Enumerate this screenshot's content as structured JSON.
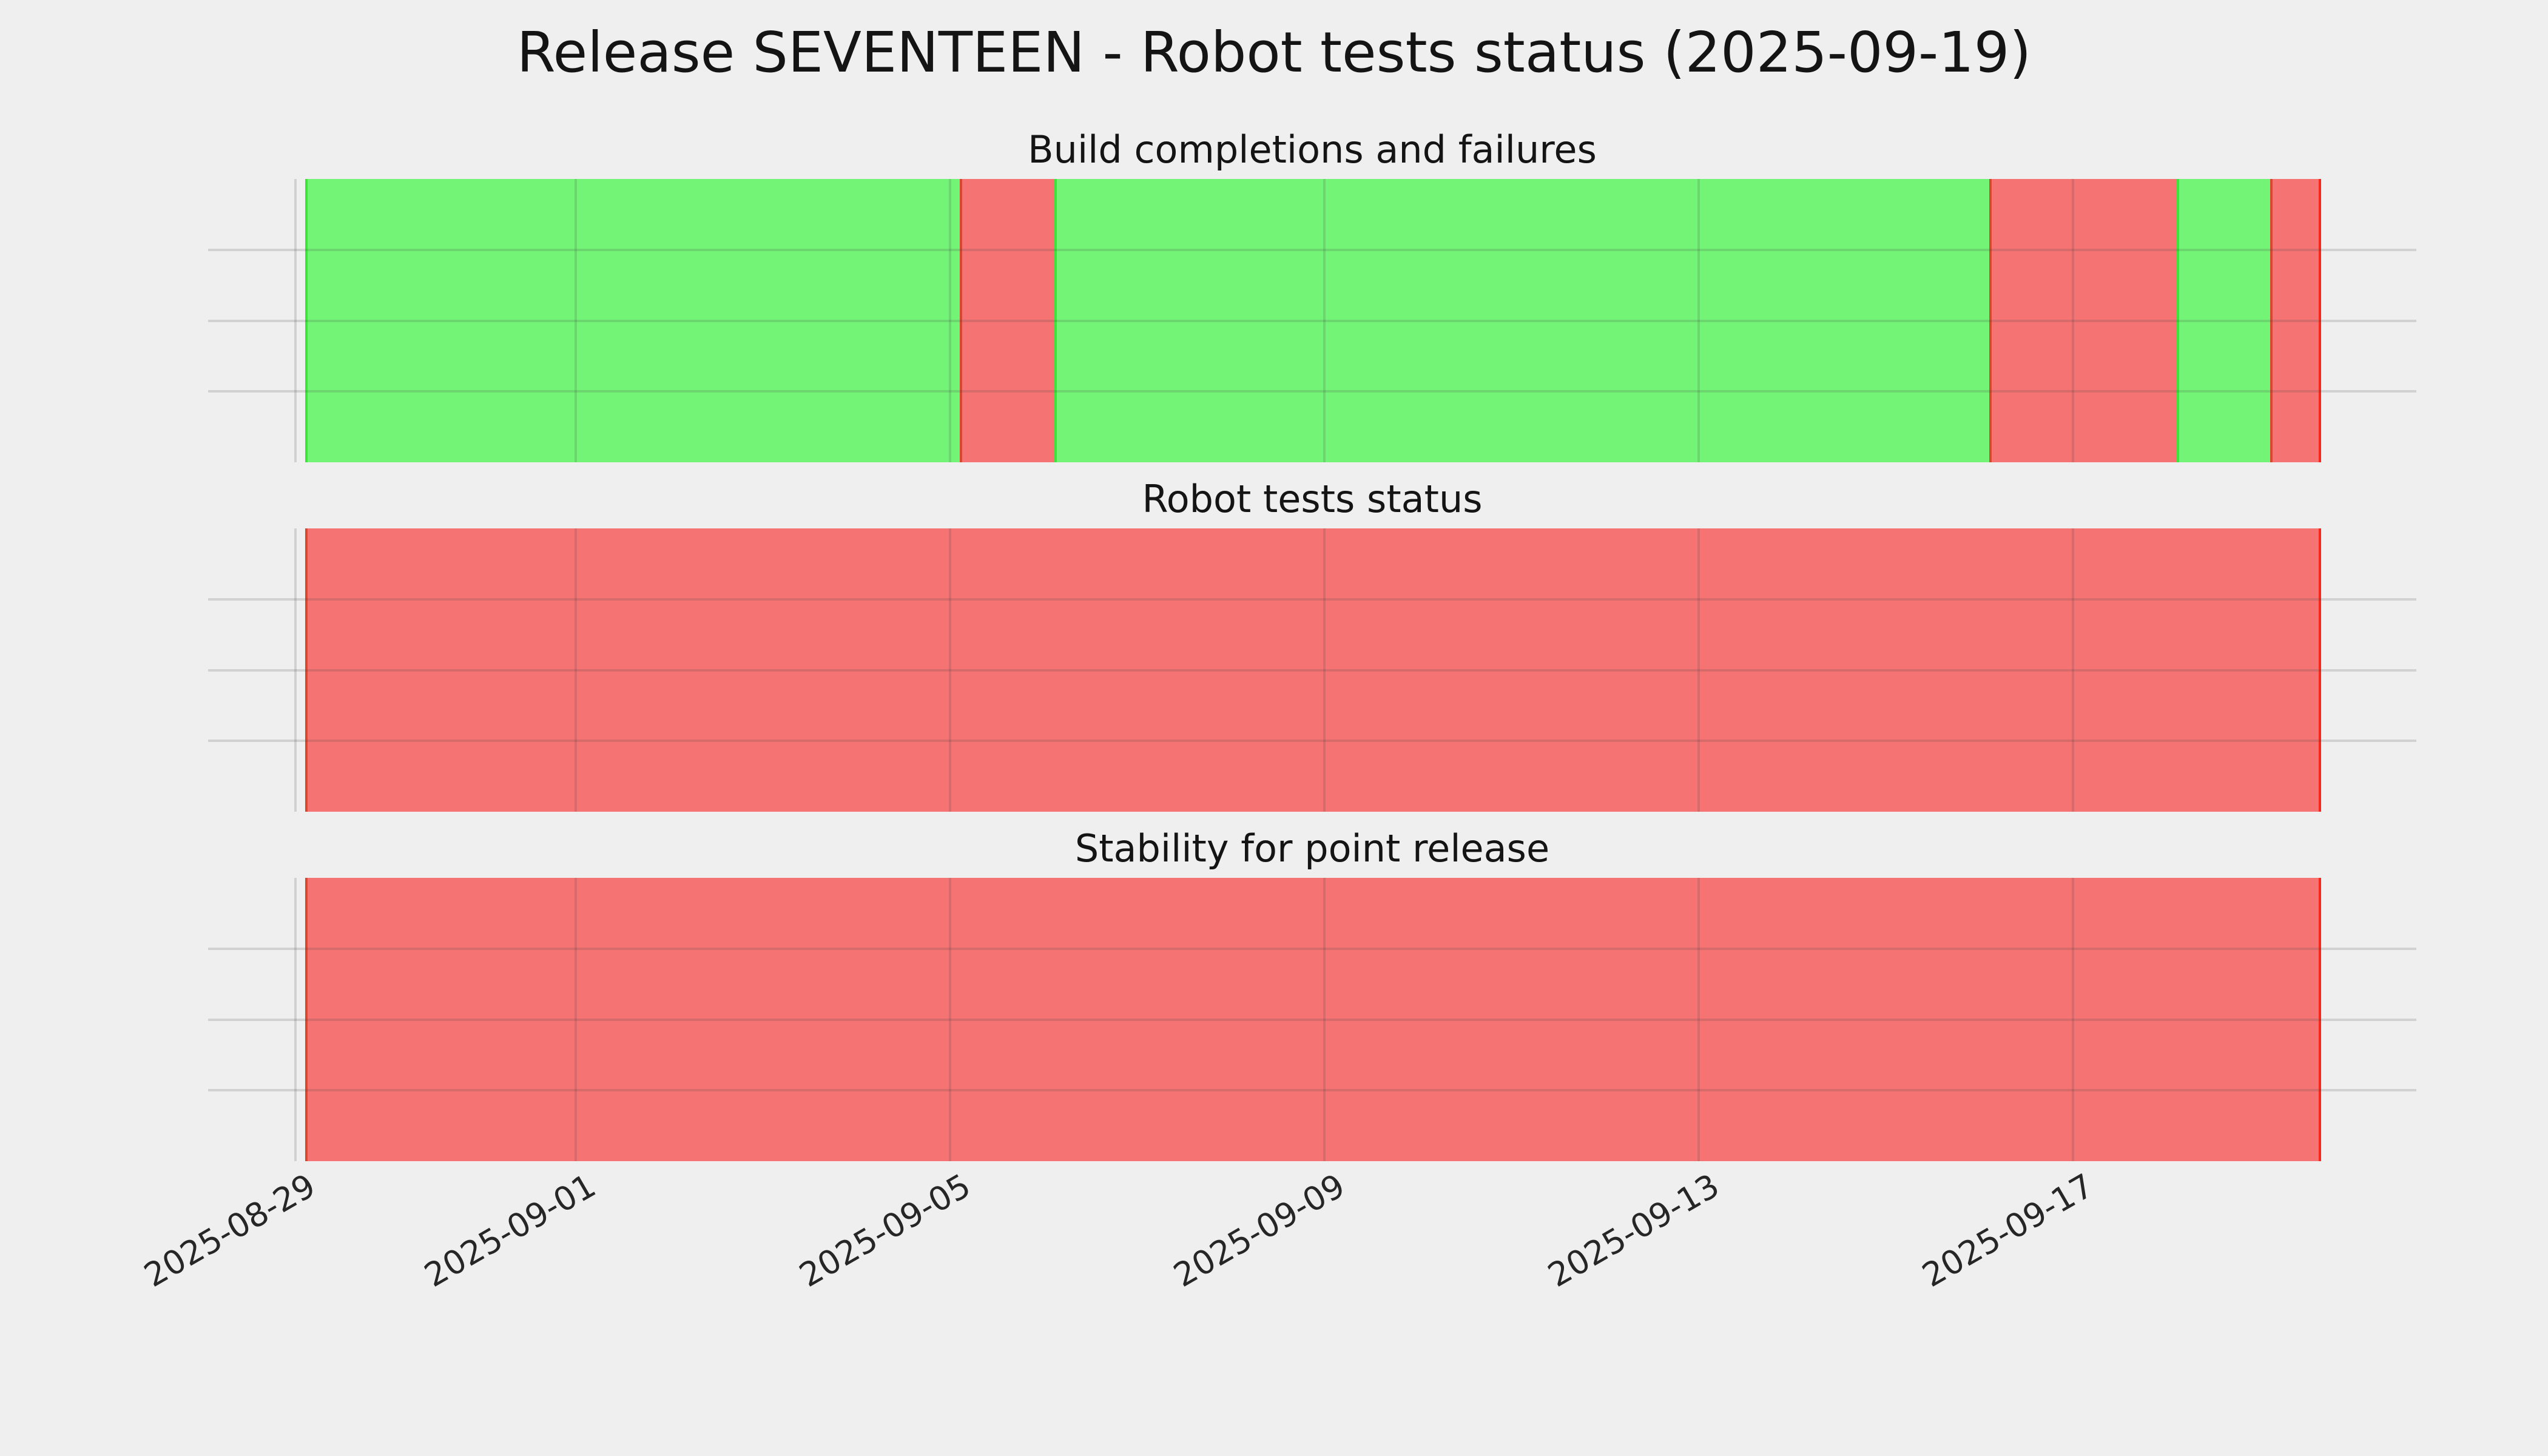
{
  "figure": {
    "suptitle": "Release SEVENTEEN - Robot tests status (2025-09-19)",
    "background_color": "#efefef",
    "gridline_color": "#cbcbcb",
    "text_color": "#141414"
  },
  "status_colors": {
    "pass_fill": "#73f476",
    "pass_edge": "#3ce43c",
    "fail_fill": "#f67373",
    "fail_edge": "#d8472f",
    "fail_edge_end": "#f6281b"
  },
  "x_axis": {
    "tick_labels": [
      "2025-08-29",
      "2025-09-01",
      "2025-09-05",
      "2025-09-09",
      "2025-09-13",
      "2025-09-17"
    ],
    "range_start": "2025-08-28T01:40",
    "range_end": "2025-09-20T16:00",
    "tick_rotation_deg": 30
  },
  "chart_data": [
    {
      "type": "bar",
      "subtype": "status-timeline-strip",
      "title": "Build completions and failures",
      "grid": true,
      "legend": false,
      "xlabel": "",
      "ylabel": "",
      "x_ticks": [
        "2025-08-29",
        "2025-09-01",
        "2025-09-05",
        "2025-09-09",
        "2025-09-13",
        "2025-09-17"
      ],
      "segments": [
        {
          "status": "pass",
          "start": "2025-08-29T02:30",
          "end": "2025-09-05T02:30"
        },
        {
          "status": "fail",
          "start": "2025-09-05T02:30",
          "end": "2025-09-06T02:40"
        },
        {
          "status": "pass",
          "start": "2025-09-06T02:40",
          "end": "2025-09-16T02:30"
        },
        {
          "status": "fail",
          "start": "2025-09-16T02:30",
          "end": "2025-09-18T02:30"
        },
        {
          "status": "pass",
          "start": "2025-09-18T02:30",
          "end": "2025-09-19T02:30"
        },
        {
          "status": "fail",
          "start": "2025-09-19T02:30",
          "end": "2025-09-19T15:30"
        }
      ]
    },
    {
      "type": "bar",
      "subtype": "status-timeline-strip",
      "title": "Robot tests status",
      "grid": true,
      "legend": false,
      "xlabel": "",
      "ylabel": "",
      "x_ticks": [
        "2025-08-29",
        "2025-09-01",
        "2025-09-05",
        "2025-09-09",
        "2025-09-13",
        "2025-09-17"
      ],
      "segments": [
        {
          "status": "fail",
          "start": "2025-08-29T02:30",
          "end": "2025-09-19T15:30"
        }
      ]
    },
    {
      "type": "bar",
      "subtype": "status-timeline-strip",
      "title": "Stability for point release",
      "grid": true,
      "legend": false,
      "xlabel": "",
      "ylabel": "",
      "x_ticks": [
        "2025-08-29",
        "2025-09-01",
        "2025-09-05",
        "2025-09-09",
        "2025-09-13",
        "2025-09-17"
      ],
      "segments": [
        {
          "status": "fail",
          "start": "2025-08-29T02:30",
          "end": "2025-09-19T15:30"
        }
      ]
    }
  ]
}
